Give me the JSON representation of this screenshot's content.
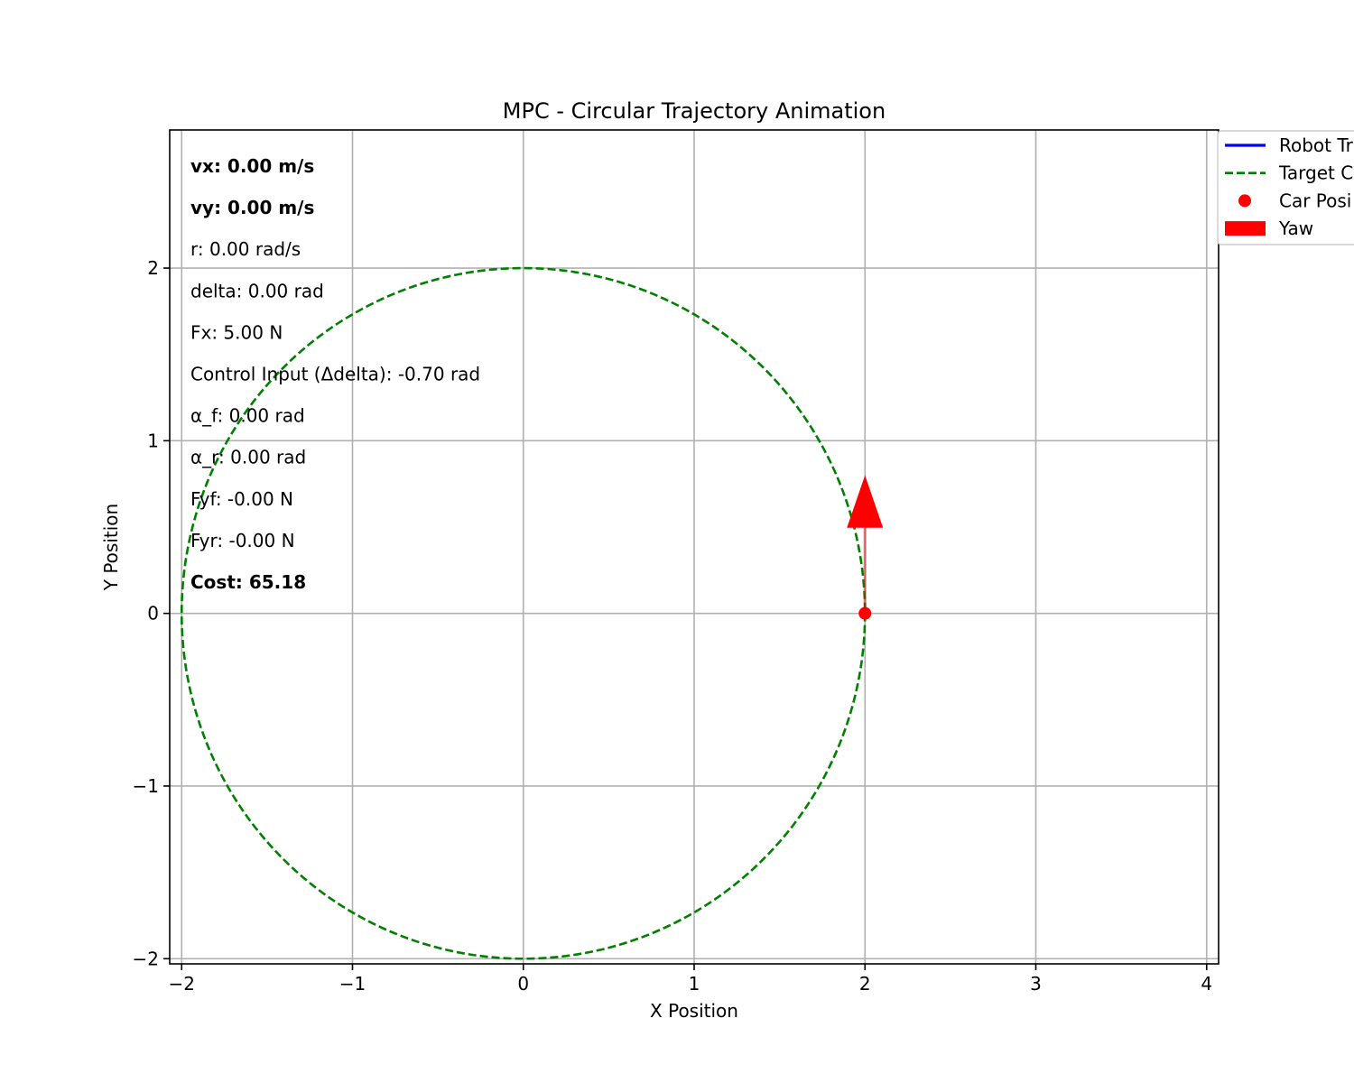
{
  "chart_data": {
    "type": "line",
    "title": "MPC - Circular Trajectory Animation",
    "xlabel": "X Position",
    "ylabel": "Y Position",
    "xlim": [
      -2.07,
      4.07
    ],
    "ylim": [
      -2.03,
      2.8
    ],
    "grid": true,
    "xticks": [
      -2,
      -1,
      0,
      1,
      2,
      3,
      4
    ],
    "xtick_labels": [
      "−2",
      "−1",
      "0",
      "1",
      "2",
      "3",
      "4"
    ],
    "yticks": [
      -2,
      -1,
      0,
      1,
      2
    ],
    "ytick_labels": [
      "−2",
      "−1",
      "0",
      "1",
      "2"
    ],
    "legend_placement": "upper-right-outside",
    "legend": [
      {
        "label": "Robot Tr",
        "kind": "line",
        "color": "#0000ff"
      },
      {
        "label": "Target C",
        "kind": "dashed",
        "color": "#008000"
      },
      {
        "label": "Car Posi",
        "kind": "marker",
        "color": "#ff0000"
      },
      {
        "label": "Yaw",
        "kind": "patch",
        "color": "#ff0000"
      }
    ],
    "series": [
      {
        "label": "Target Circle",
        "shape": "circle",
        "center": [
          0,
          0
        ],
        "radius": 2,
        "color": "#008000",
        "style": "dashed"
      },
      {
        "label": "Car Position",
        "x": [
          2.0
        ],
        "y": [
          0.0
        ],
        "color": "#ff0000",
        "style": "marker"
      },
      {
        "label": "Yaw",
        "origin": [
          2.0,
          0.0
        ],
        "direction": [
          0,
          1
        ],
        "length": 0.8,
        "color": "#ff0000",
        "style": "arrow"
      }
    ],
    "annotations": [
      {
        "text": "vx: 0.00 m/s",
        "bold": true
      },
      {
        "text": "vy: 0.00 m/s",
        "bold": true
      },
      {
        "text": "r: 0.00 rad/s",
        "bold": false
      },
      {
        "text": "delta: 0.00 rad",
        "bold": false
      },
      {
        "text": "Fx: 5.00 N",
        "bold": false
      },
      {
        "text": "Control Input (Δdelta): -0.70 rad",
        "bold": false
      },
      {
        "text": "α_f: 0.00 rad",
        "bold": false
      },
      {
        "text": "α_r: 0.00 rad",
        "bold": false
      },
      {
        "text": "Fyf: -0.00 N",
        "bold": false
      },
      {
        "text": "Fyr: -0.00 N",
        "bold": false
      },
      {
        "text": "Cost: 65.18",
        "bold": true
      }
    ]
  }
}
